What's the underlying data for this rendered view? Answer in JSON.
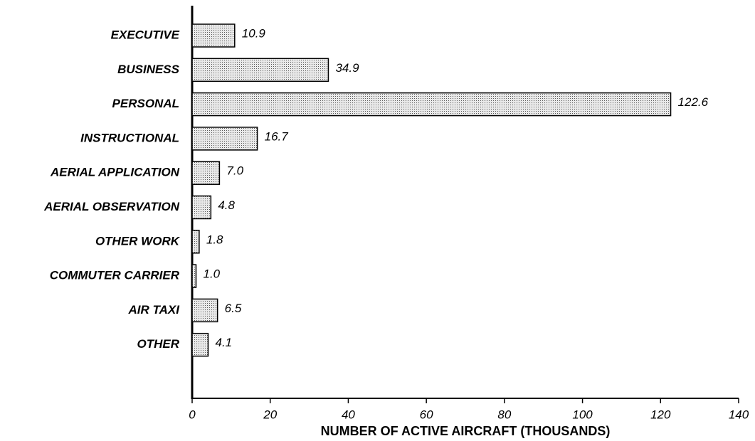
{
  "chart_data": {
    "type": "bar",
    "orientation": "horizontal",
    "categories": [
      "EXECUTIVE",
      "BUSINESS",
      "PERSONAL",
      "INSTRUCTIONAL",
      "AERIAL APPLICATION",
      "AERIAL OBSERVATION",
      "OTHER WORK",
      "COMMUTER CARRIER",
      "AIR TAXI",
      "OTHER"
    ],
    "values": [
      10.9,
      34.9,
      122.6,
      16.7,
      7.0,
      4.8,
      1.8,
      1.0,
      6.5,
      4.1
    ],
    "value_labels": [
      "10.9",
      "34.9",
      "122.6",
      "16.7",
      "7.0",
      "4.8",
      "1.8",
      "1.0",
      "6.5",
      "4.1"
    ],
    "color": "#d4d4d4",
    "xlabel": "NUMBER OF ACTIVE AIRCRAFT (THOUSANDS)",
    "xlim": [
      0,
      140
    ],
    "xticks": [
      0,
      20,
      40,
      60,
      80,
      100,
      120,
      140
    ],
    "grid": false
  }
}
